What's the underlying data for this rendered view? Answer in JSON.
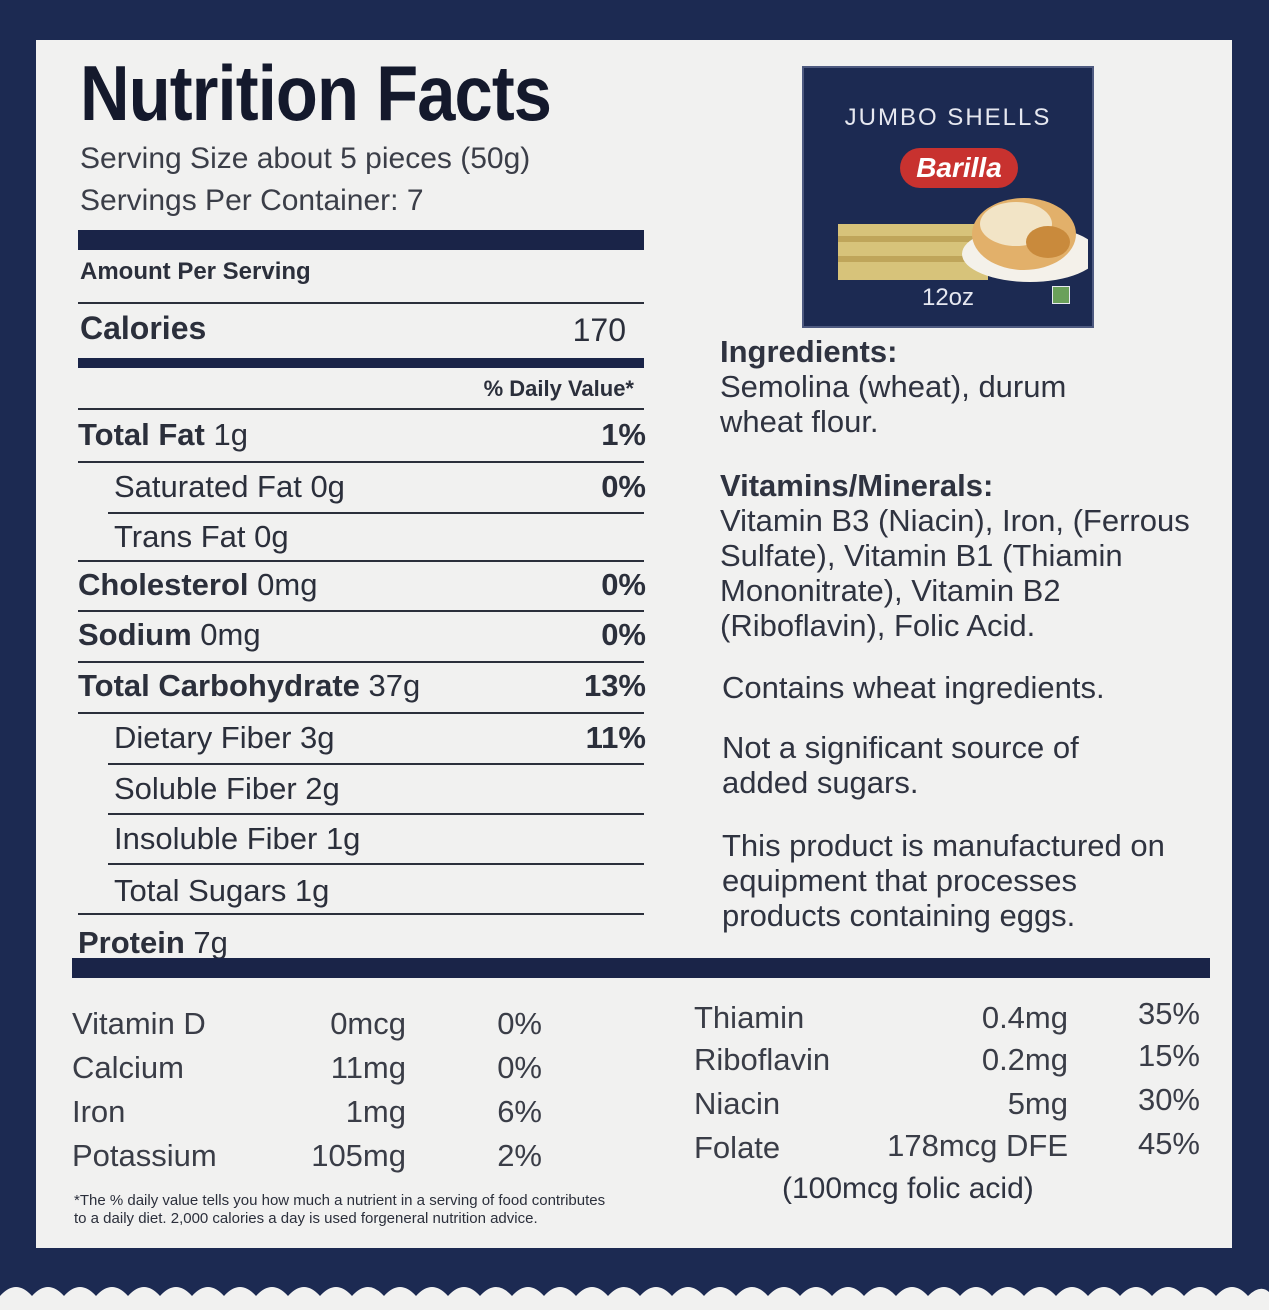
{
  "title": "Nutrition Facts",
  "serving_size": "Serving Size about 5 pieces (50g)",
  "servings_per_container": "Servings Per Container: 7",
  "amount_per_serving": "Amount Per Serving",
  "calories_label": "Calories",
  "calories_value": "170",
  "daily_value_header": "% Daily Value*",
  "nutrients": [
    {
      "name": "Total Fat",
      "amount": " 1g",
      "dv": "1%"
    },
    {
      "name": "Saturated Fat 0g",
      "amount": "",
      "dv": "0%"
    },
    {
      "name": "Trans Fat 0g",
      "amount": "",
      "dv": ""
    },
    {
      "name": "Cholesterol",
      "amount": " 0mg",
      "dv": "0%"
    },
    {
      "name": "Sodium",
      "amount": " 0mg",
      "dv": "0%"
    },
    {
      "name": "Total Carbohydrate",
      "amount": " 37g",
      "dv": "13%"
    },
    {
      "name": "Dietary Fiber 3g",
      "amount": "",
      "dv": "11%"
    },
    {
      "name": "Soluble Fiber 2g",
      "amount": "",
      "dv": ""
    },
    {
      "name": "Insoluble Fiber 1g",
      "amount": "",
      "dv": ""
    },
    {
      "name": "Total Sugars 1g",
      "amount": "",
      "dv": ""
    },
    {
      "name": "Protein",
      "amount": " 7g",
      "dv": ""
    }
  ],
  "product": {
    "name": "JUMBO SHELLS",
    "brand": "Barilla",
    "size": "12oz"
  },
  "ingredients_heading": "Ingredients:",
  "ingredients_text": "Semolina (wheat), durum wheat flour.",
  "vitamins_heading": "Vitamins/Minerals:",
  "vitamins_text": "Vitamin B3 (Niacin), Iron, (Ferrous Sulfate), Vitamin B1 (Thiamin Mononitrate), Vitamin B2 (Riboflavin), Folic Acid.",
  "contains": "Contains wheat ingredients.",
  "sugars_note": "Not a significant source of added sugars.",
  "equipment_note": "This product is manufactured on equipment that processes products containing eggs.",
  "vitamins_left": [
    {
      "name": "Vitamin D",
      "amount": "0mcg",
      "dv": "0%"
    },
    {
      "name": "Calcium",
      "amount": "11mg",
      "dv": "0%"
    },
    {
      "name": "Iron",
      "amount": "1mg",
      "dv": "6%"
    },
    {
      "name": "Potassium",
      "amount": "105mg",
      "dv": "2%"
    }
  ],
  "vitamins_right": [
    {
      "name": "Thiamin",
      "amount": "0.4mg",
      "dv": "35%"
    },
    {
      "name": "Riboflavin",
      "amount": "0.2mg",
      "dv": "15%"
    },
    {
      "name": "Niacin",
      "amount": "5mg",
      "dv": "30%"
    },
    {
      "name": "Folate",
      "amount": "178mcg DFE",
      "dv": "45%"
    }
  ],
  "folic_note": "(100mcg folic acid)",
  "footnote_1": "*The % daily value tells you how much a nutrient in a serving of food contributes",
  "footnote_2": "to a daily diet. 2,000 calories a day is used forgeneral nutrition advice."
}
